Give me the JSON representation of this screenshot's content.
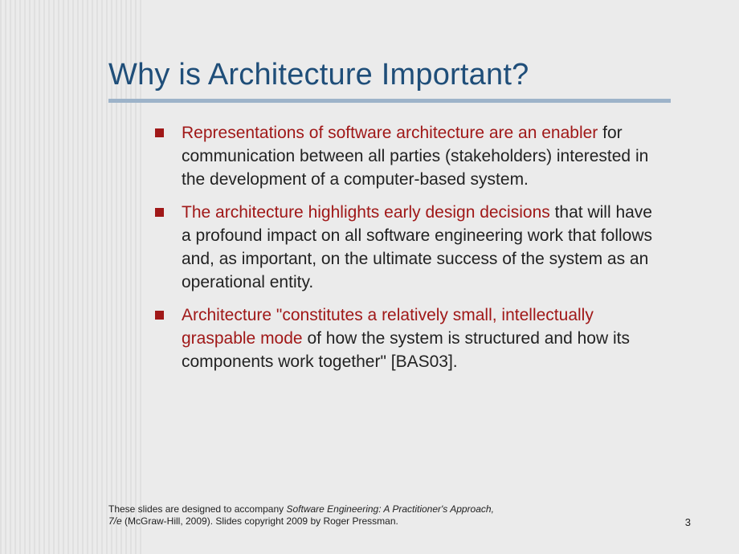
{
  "slide": {
    "title": "Why is Architecture Important?",
    "title_color": "#1f4e79",
    "title_fontsize": 38,
    "rule_color": "#9db3c9",
    "bullets": [
      {
        "em": "Representations of software architecture are an enabler",
        "rest": " for communication between all parties (stakeholders) interested in the development of a computer-based system."
      },
      {
        "em": "The architecture highlights early design decisions",
        "rest": " that will have a profound impact on all software engineering work that follows and, as important, on the ultimate success of the system as an operational entity."
      },
      {
        "em": "Architecture \"constitutes a relatively small, intellectually graspable mode",
        "rest": " of how the system is structured and how its components work together\" [BAS03]."
      }
    ],
    "bullet_marker_color": "#a01818",
    "emphasis_color": "#a01818",
    "body_fontsize": 21
  },
  "footer": {
    "line1_prefix": "These slides are designed to accompany ",
    "line1_italic": "Software Engineering: A Practitioner's Approach,",
    "line2_italic": "7/e",
    "line2_rest": " (McGraw-Hill, 2009). Slides copyright 2009 by Roger Pressman.",
    "page": "3"
  },
  "background_color": "#ebebeb"
}
